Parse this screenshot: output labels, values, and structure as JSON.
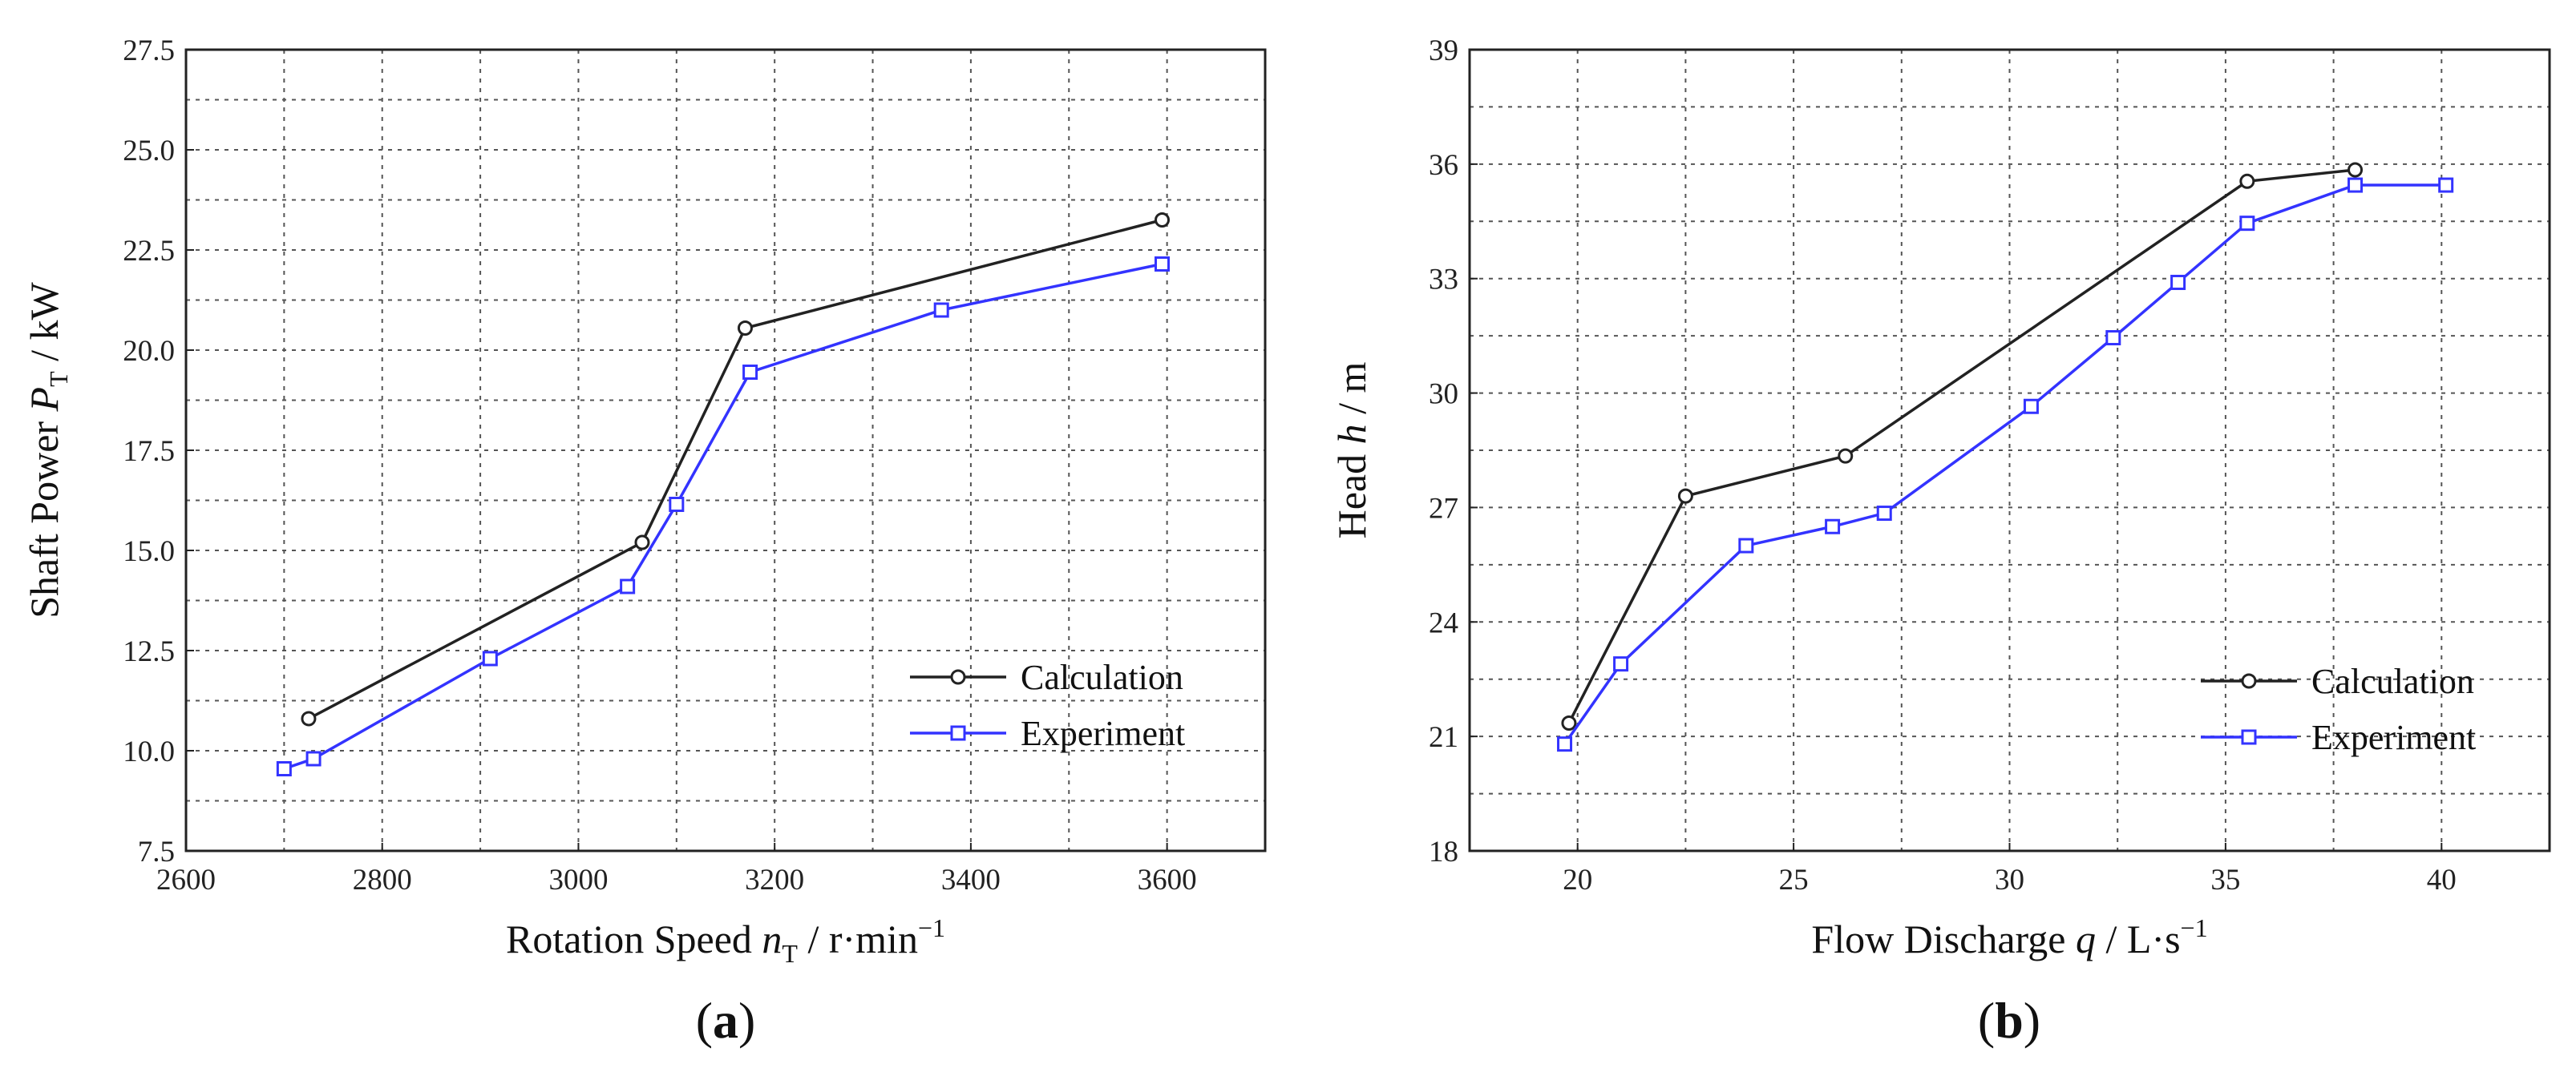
{
  "chart_data": [
    {
      "type": "line",
      "panel_label": "(a)",
      "xlabel": {
        "main": "Rotation Speed ",
        "var": "n",
        "sub": "T",
        "unit": " / r·min",
        "sup": "−1"
      },
      "ylabel": {
        "main": "Shaft Power ",
        "var": "P",
        "sub": "T",
        "unit": " / kW"
      },
      "xlim": [
        2600,
        3700
      ],
      "ylim": [
        7.5,
        27.5
      ],
      "xticks": [
        "2600",
        "2800",
        "3000",
        "3200",
        "3400",
        "3600"
      ],
      "yticks": [
        "7.5",
        "10.0",
        "12.5",
        "15.0",
        "17.5",
        "20.0",
        "22.5",
        "25.0",
        "27.5"
      ],
      "legend_position": "lower-right",
      "series": [
        {
          "name": "Calculation",
          "color": "#222222",
          "marker": "circle",
          "x": [
            2725,
            3065,
            3170,
            3595
          ],
          "y": [
            10.8,
            15.2,
            20.55,
            23.25
          ]
        },
        {
          "name": "Experiment",
          "color": "#3333ff",
          "marker": "square",
          "x": [
            2700,
            2730,
            2910,
            3050,
            3100,
            3175,
            3370,
            3595
          ],
          "y": [
            9.55,
            9.8,
            12.3,
            14.1,
            16.15,
            19.45,
            21.0,
            22.15
          ]
        }
      ]
    },
    {
      "type": "line",
      "panel_label": "(b)",
      "xlabel": {
        "main": "Flow Discharge ",
        "var": "q",
        "sub": "",
        "unit": " / L·s",
        "sup": "−1"
      },
      "ylabel": {
        "main": "Head ",
        "var": "h",
        "sub": "",
        "unit": " / m"
      },
      "xlim": [
        17.5,
        42.5
      ],
      "ylim": [
        18,
        39
      ],
      "xticks": [
        "20",
        "25",
        "30",
        "35",
        "40"
      ],
      "yticks": [
        "18",
        "21",
        "24",
        "27",
        "30",
        "33",
        "36",
        "39"
      ],
      "legend_position": "lower-right",
      "series": [
        {
          "name": "Calculation",
          "color": "#222222",
          "marker": "circle",
          "x": [
            19.8,
            22.5,
            26.2,
            35.5,
            38.0
          ],
          "y": [
            21.35,
            27.3,
            28.35,
            35.55,
            35.85
          ]
        },
        {
          "name": "Experiment",
          "color": "#3333ff",
          "marker": "square",
          "x": [
            19.7,
            21.0,
            23.9,
            25.9,
            27.1,
            30.5,
            32.4,
            33.9,
            35.5,
            38.0,
            40.1
          ],
          "y": [
            20.8,
            22.9,
            26.0,
            26.5,
            26.85,
            29.65,
            31.45,
            32.9,
            34.45,
            35.45,
            35.45
          ]
        }
      ]
    }
  ]
}
